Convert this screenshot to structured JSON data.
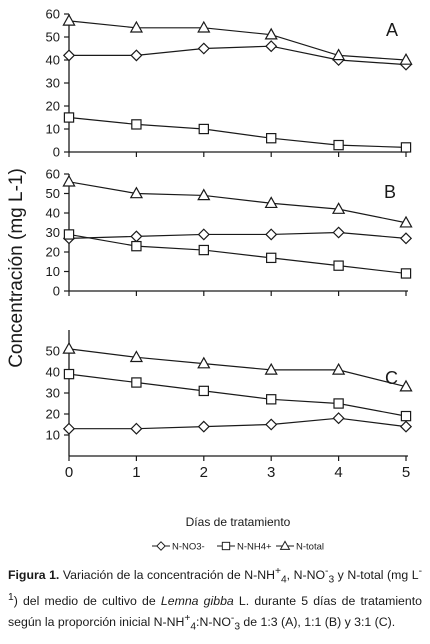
{
  "chart_data": [
    {
      "type": "line",
      "panel_label": "A",
      "x": [
        0,
        1,
        2,
        3,
        4,
        5
      ],
      "ylim": [
        0,
        60
      ],
      "yticks": [
        0,
        10,
        20,
        30,
        40,
        50,
        60
      ],
      "series": [
        {
          "name": "N-NO3-",
          "marker": "diamond",
          "values": [
            42,
            42,
            45,
            46,
            40,
            38
          ]
        },
        {
          "name": "N-NH4+",
          "marker": "square",
          "values": [
            15,
            12,
            10,
            6,
            3,
            2
          ]
        },
        {
          "name": "N-total",
          "marker": "triangle",
          "values": [
            57,
            54,
            54,
            51,
            42,
            40
          ]
        }
      ]
    },
    {
      "type": "line",
      "panel_label": "B",
      "x": [
        0,
        1,
        2,
        3,
        4,
        5
      ],
      "ylim": [
        0,
        60
      ],
      "yticks": [
        0,
        10,
        20,
        30,
        40,
        50,
        60
      ],
      "series": [
        {
          "name": "N-NO3-",
          "marker": "diamond",
          "values": [
            27,
            28,
            29,
            29,
            30,
            27
          ]
        },
        {
          "name": "N-NH4+",
          "marker": "square",
          "values": [
            29,
            23,
            21,
            17,
            13,
            9
          ]
        },
        {
          "name": "N-total",
          "marker": "triangle",
          "values": [
            56,
            50,
            49,
            45,
            42,
            35
          ]
        }
      ]
    },
    {
      "type": "line",
      "panel_label": "C",
      "x": [
        0,
        1,
        2,
        3,
        4,
        5
      ],
      "ylim": [
        0,
        60
      ],
      "yticks": [
        10,
        20,
        30,
        40,
        50
      ],
      "xticks": [
        "0",
        "1",
        "2",
        "3",
        "4",
        "5"
      ],
      "series": [
        {
          "name": "N-NO3-",
          "marker": "diamond",
          "values": [
            13,
            13,
            14,
            15,
            18,
            14
          ]
        },
        {
          "name": "N-NH4+",
          "marker": "square",
          "values": [
            39,
            35,
            31,
            27,
            25,
            19
          ]
        },
        {
          "name": "N-total",
          "marker": "triangle",
          "values": [
            51,
            47,
            44,
            41,
            41,
            33
          ]
        }
      ]
    }
  ],
  "ylabel": "Concentración (mg L-1)",
  "xlabel": "Días de tratamiento",
  "legend": [
    "N-NO3-",
    "N-NH4+",
    "N-total"
  ],
  "caption": {
    "label": "Figura 1.",
    "part1": " Variación de la concentración de N-NH",
    "part2": "+",
    "part3": "4",
    "part4": ", N-NO",
    "part5": "-",
    "part6": "3",
    "part7": " y N-total (mg L",
    "part8": "-1",
    "part9": ") del medio de cultivo de ",
    "species": "Lemna gibba",
    "part10": " L. durante 5 días de tratamiento según la proporción inicial N-NH",
    "part11": "+",
    "part12": "4",
    "part13": ":N-NO",
    "part14": "-",
    "part15": "3",
    "part16": " de 1:3 (A), 1:1 (B) y 3:1 (C)."
  }
}
